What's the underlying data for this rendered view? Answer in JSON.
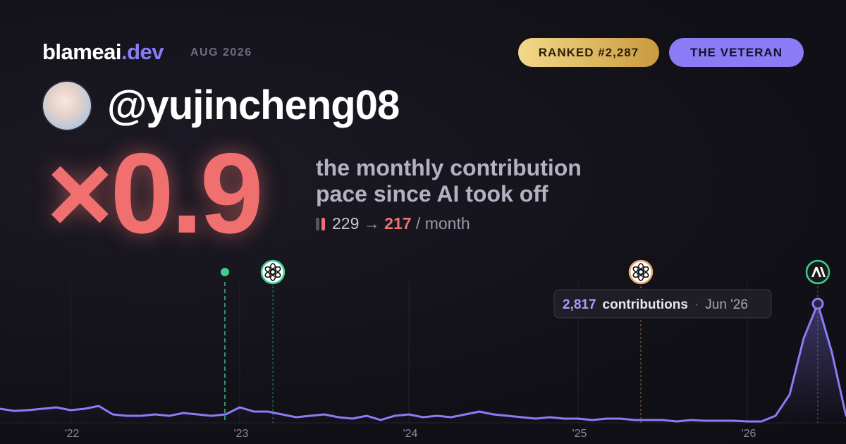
{
  "header": {
    "brand": "blameai",
    "brand_suffix": ".dev",
    "date": "AUG 2026",
    "rank_badge": "RANKED #2,287",
    "title_badge": "THE VETERAN"
  },
  "profile": {
    "username": "@yujincheng08"
  },
  "headline": {
    "multiplier": "×0.9",
    "description": [
      "the monthly contribution",
      "pace since AI took off"
    ],
    "before": "229",
    "arrow": "→",
    "after": "217",
    "unit": "/ month"
  },
  "chart_data": {
    "type": "line",
    "x": [
      0,
      1,
      2,
      3,
      4,
      5,
      6,
      7,
      8,
      9,
      10,
      11,
      12,
      13,
      14,
      15,
      16,
      17,
      18,
      19,
      20,
      21,
      22,
      23,
      24,
      25,
      26,
      27,
      28,
      29,
      30,
      31,
      32,
      33,
      34,
      35,
      36,
      37,
      38,
      39,
      40,
      41,
      42,
      43,
      44,
      45,
      46,
      47,
      48,
      49,
      50,
      51,
      52,
      53,
      54,
      55,
      56,
      57,
      58,
      59,
      60
    ],
    "series": [
      {
        "color": "#8b7cf6",
        "values": [
          333,
          283,
          300,
          333,
          367,
          300,
          333,
          400,
          200,
          167,
          167,
          200,
          167,
          233,
          200,
          167,
          200,
          367,
          267,
          267,
          200,
          133,
          167,
          200,
          133,
          100,
          167,
          67,
          167,
          200,
          133,
          167,
          133,
          200,
          267,
          200,
          167,
          133,
          100,
          133,
          100,
          100,
          67,
          100,
          100,
          67,
          67,
          67,
          33,
          67,
          50,
          50,
          50,
          33,
          33,
          167,
          667,
          2000,
          2817,
          1667,
          167
        ]
      }
    ],
    "xlim": [
      0,
      60
    ],
    "xticks": [
      {
        "value": 5,
        "label": "'22"
      },
      {
        "value": 17,
        "label": "'23"
      },
      {
        "value": 29,
        "label": "'24"
      },
      {
        "value": 41,
        "label": "'25"
      },
      {
        "value": 53,
        "label": "'26"
      }
    ],
    "ylim": [
      0,
      3000
    ],
    "grid": true,
    "events": [
      {
        "x": 15.95,
        "color": "#3ecf8e"
      },
      {
        "x": 19.35,
        "color": "#3ecf8e"
      },
      {
        "x": 45.45,
        "color": "#e8a96a"
      },
      {
        "x": 58,
        "color": "#3ecf8e"
      }
    ],
    "tooltip": {
      "value": "2,817",
      "label": "contributions",
      "separator": "·",
      "date": "Jun '26"
    }
  }
}
